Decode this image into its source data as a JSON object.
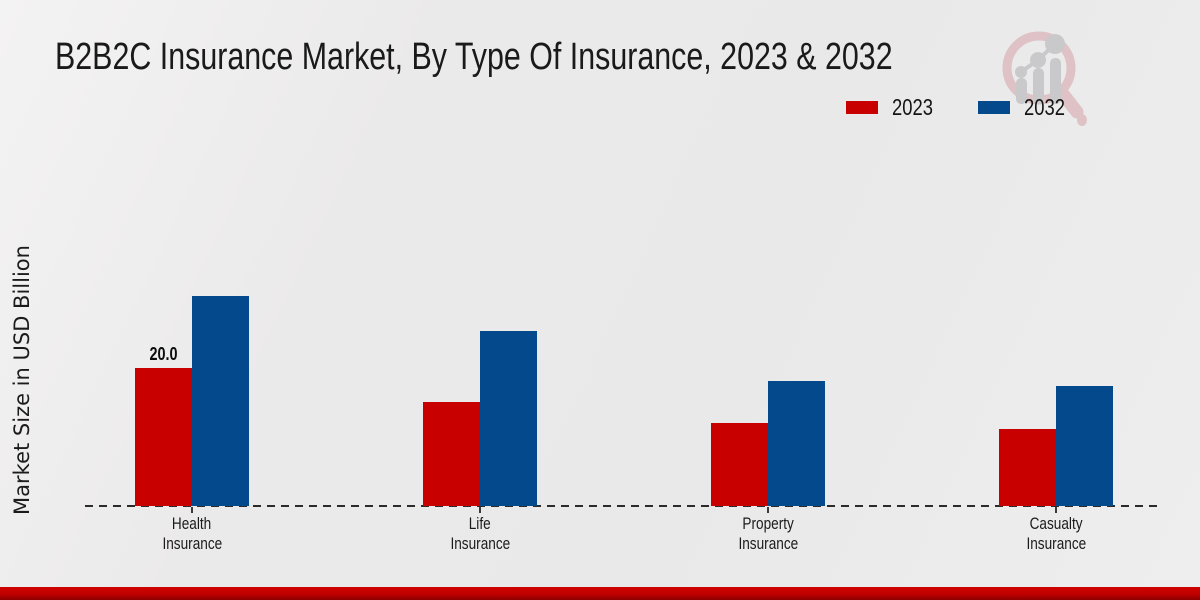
{
  "header": {
    "title": "B2B2C Insurance Market, By Type Of Insurance, 2023 & 2032"
  },
  "legend": {
    "items": [
      {
        "label": "2023",
        "color": "#c80100"
      },
      {
        "label": "2032",
        "color": "#04498b"
      }
    ]
  },
  "axes": {
    "ylabel": "Market Size in USD Billion"
  },
  "branding": {
    "logo": "magnifier-growth-chart-logo",
    "footer_accent_color": "#c00000"
  },
  "chart_data": {
    "type": "bar",
    "title": "B2B2C Insurance Market, By Type Of Insurance, 2023 & 2032",
    "categories": [
      "Health Insurance",
      "Life Insurance",
      "Property Insurance",
      "Casualty Insurance"
    ],
    "series": [
      {
        "name": "2023",
        "color": "#c80100",
        "values": [
          20.0,
          15.0,
          12.0,
          11.1
        ]
      },
      {
        "name": "2032",
        "color": "#04498b",
        "values": [
          30.4,
          25.3,
          18.1,
          17.4
        ]
      }
    ],
    "data_labels": [
      {
        "series": "2023",
        "category": "Health Insurance",
        "text": "20.0"
      }
    ],
    "xlabel": "",
    "ylabel": "Market Size in USD Billion",
    "ylim": [
      0,
      32
    ],
    "grid": false,
    "y_ticks_visible": false,
    "legend_position": "top-right",
    "baseline_style": "dashed"
  }
}
